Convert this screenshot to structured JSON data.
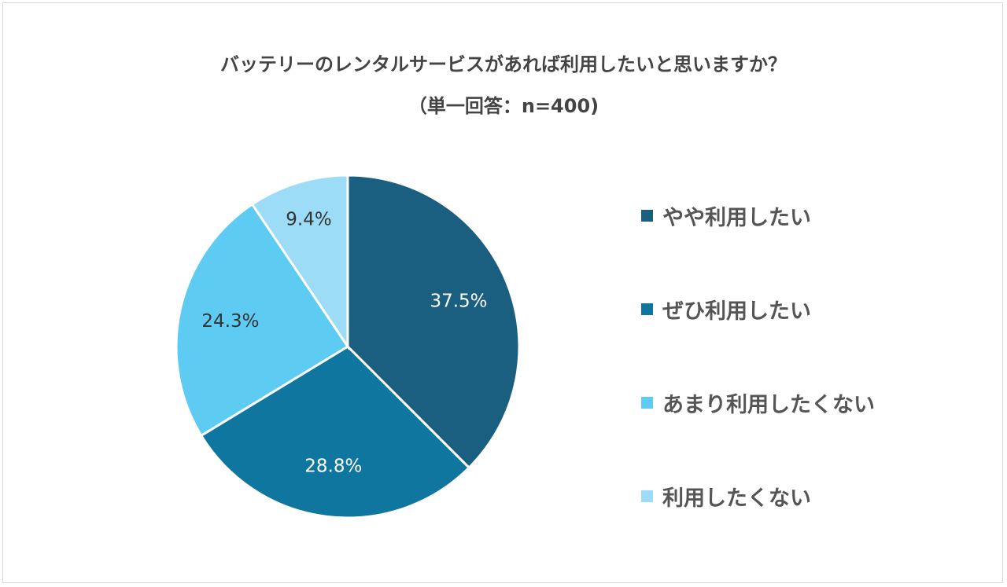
{
  "chart_data": {
    "type": "pie",
    "title": "バッテリーのレンタルサービスがあれば利用したいと思いますか？",
    "subtitle": "（単一回答：n=400)",
    "slices": [
      {
        "label": "やや利用したい",
        "value": 37.5,
        "display": "37.5%",
        "color": "#1a5e80"
      },
      {
        "label": "ぜひ利用したい",
        "value": 28.8,
        "display": "28.8%",
        "color": "#0f76a0"
      },
      {
        "label": "あまり利用したくない",
        "value": 24.3,
        "display": "24.3%",
        "color": "#5ecbf2"
      },
      {
        "label": "利用したくない",
        "value": 9.4,
        "display": "9.4%",
        "color": "#9cdcf6"
      }
    ],
    "legend_placement": "right"
  }
}
